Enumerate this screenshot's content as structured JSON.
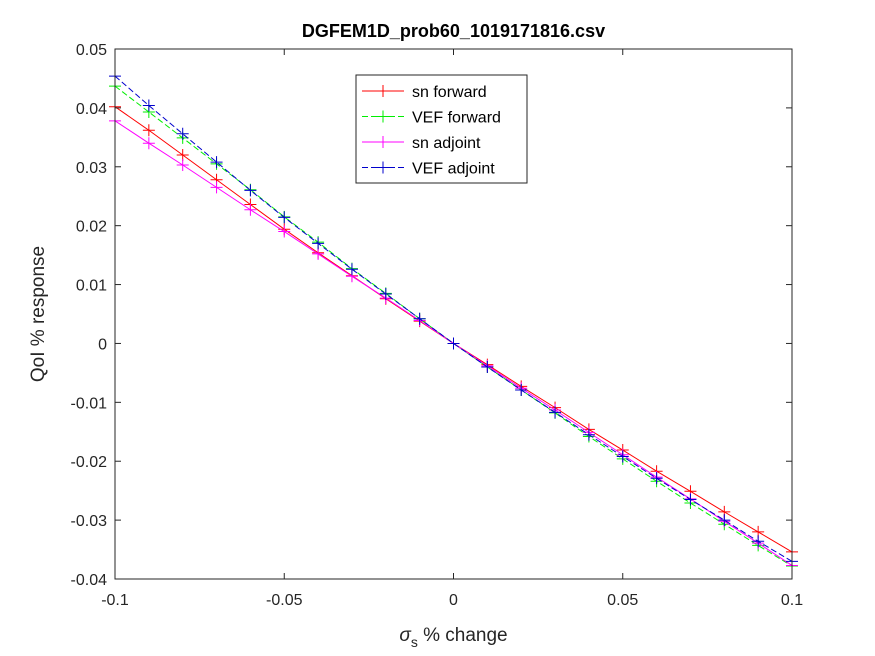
{
  "chart_data": {
    "type": "line",
    "title": "DGFEM1D_prob60_1019171816.csv",
    "xlabel": {
      "symbol": "σ",
      "subscript": "s",
      "text": " % change"
    },
    "ylabel": "QoI % response",
    "xlim": [
      -0.1,
      0.1
    ],
    "ylim": [
      -0.04,
      0.05
    ],
    "xticks": [
      -0.1,
      -0.05,
      0,
      0.05,
      0.1
    ],
    "xtick_labels": [
      "-0.1",
      "-0.05",
      "0",
      "0.05",
      "0.1"
    ],
    "yticks": [
      -0.04,
      -0.03,
      -0.02,
      -0.01,
      0,
      0.01,
      0.02,
      0.03,
      0.04,
      0.05
    ],
    "ytick_labels": [
      "-0.04",
      "-0.03",
      "-0.02",
      "-0.01",
      "0",
      "0.01",
      "0.02",
      "0.03",
      "0.04",
      "0.05"
    ],
    "grid": false,
    "legend_position": "top-center",
    "x": [
      -0.1,
      -0.09,
      -0.08,
      -0.07,
      -0.06,
      -0.05,
      -0.04,
      -0.03,
      -0.02,
      -0.01,
      0,
      0.01,
      0.02,
      0.03,
      0.04,
      0.05,
      0.06,
      0.07,
      0.08,
      0.09,
      0.1
    ],
    "series": [
      {
        "name": "sn forward",
        "color": "#ff0000",
        "dash": "solid",
        "marker": "+",
        "values": [
          0.0402,
          0.0362,
          0.032,
          0.0278,
          0.0236,
          0.0194,
          0.0154,
          0.0115,
          0.0076,
          0.0038,
          0,
          -0.0036,
          -0.0073,
          -0.0109,
          -0.0146,
          -0.0181,
          -0.0217,
          -0.0251,
          -0.0286,
          -0.032,
          -0.0354
        ]
      },
      {
        "name": "VEF forward",
        "color": "#00ee00",
        "dash": "dashed",
        "marker": "+",
        "values": [
          0.0437,
          0.0393,
          0.0349,
          0.0305,
          0.0261,
          0.0215,
          0.0172,
          0.0127,
          0.0085,
          0.0042,
          0,
          -0.004,
          -0.0079,
          -0.0118,
          -0.0158,
          -0.0196,
          -0.0234,
          -0.0271,
          -0.0307,
          -0.0343,
          -0.0378
        ]
      },
      {
        "name": "sn adjoint",
        "color": "#ff00ff",
        "dash": "solid",
        "marker": "+",
        "values": [
          0.0378,
          0.034,
          0.0303,
          0.0265,
          0.0227,
          0.019,
          0.0152,
          0.0114,
          0.0077,
          0.0039,
          0,
          -0.0038,
          -0.0076,
          -0.0113,
          -0.0151,
          -0.0189,
          -0.0227,
          -0.0264,
          -0.0302,
          -0.0339,
          -0.0377
        ]
      },
      {
        "name": "VEF adjoint",
        "color": "#0000cc",
        "dash": "dashed",
        "marker": "+",
        "values": [
          0.0454,
          0.0404,
          0.0356,
          0.0308,
          0.026,
          0.0214,
          0.017,
          0.0126,
          0.0084,
          0.0042,
          0,
          -0.004,
          -0.0079,
          -0.0117,
          -0.0155,
          -0.0192,
          -0.0229,
          -0.0265,
          -0.03,
          -0.0336,
          -0.037
        ]
      }
    ]
  }
}
